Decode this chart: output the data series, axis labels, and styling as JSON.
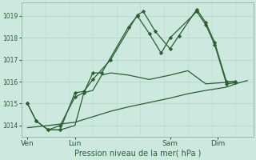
{
  "background_color": "#cce8df",
  "grid_color_h": "#b8d8cc",
  "grid_color_v_major": "#9ab8aa",
  "grid_color_v_minor": "#b8d8cc",
  "line_color": "#2a6030",
  "marker_color": "#2a6030",
  "xlabel": "Pression niveau de la mer( hPa )",
  "x_tick_labels": [
    "Ven",
    "Lun",
    "Sam",
    "Dim"
  ],
  "x_tick_positions": [
    0,
    16,
    48,
    64
  ],
  "series": [
    {
      "x": [
        0,
        3,
        7,
        11,
        16,
        19,
        22,
        28,
        37,
        39,
        43,
        48,
        51,
        57,
        60,
        63,
        67,
        70
      ],
      "y": [
        1015.0,
        1014.2,
        1013.8,
        1013.8,
        1015.5,
        1015.55,
        1016.1,
        1017.0,
        1019.05,
        1019.2,
        1018.3,
        1017.5,
        1018.1,
        1019.3,
        1018.7,
        1017.8,
        1016.0,
        1016.0
      ],
      "marker": "D",
      "ms": 2.2,
      "lw": 0.9,
      "zorder": 5
    },
    {
      "x": [
        0,
        3,
        7,
        11,
        16,
        19,
        22,
        25,
        34,
        37,
        41,
        45,
        48,
        57,
        60,
        63,
        67,
        70
      ],
      "y": [
        1015.0,
        1014.2,
        1013.8,
        1014.0,
        1015.3,
        1015.5,
        1016.4,
        1016.4,
        1018.5,
        1019.0,
        1018.2,
        1017.3,
        1018.0,
        1019.2,
        1018.6,
        1017.7,
        1015.9,
        1015.95
      ],
      "marker": "D",
      "ms": 2.2,
      "lw": 0.9,
      "zorder": 4
    },
    {
      "x": [
        7,
        11,
        16,
        19,
        22,
        25,
        28,
        34,
        41,
        48,
        54,
        60,
        70
      ],
      "y": [
        1013.8,
        1013.8,
        1014.0,
        1015.5,
        1015.6,
        1016.3,
        1016.4,
        1016.3,
        1016.1,
        1016.3,
        1016.5,
        1015.9,
        1016.0
      ],
      "marker": null,
      "ms": 0,
      "lw": 0.9,
      "zorder": 3
    },
    {
      "x": [
        0,
        7,
        16,
        22,
        28,
        34,
        41,
        48,
        54,
        60,
        67,
        70,
        74
      ],
      "y": [
        1013.9,
        1014.0,
        1014.15,
        1014.4,
        1014.65,
        1014.85,
        1015.05,
        1015.25,
        1015.45,
        1015.6,
        1015.75,
        1015.9,
        1016.05
      ],
      "marker": null,
      "ms": 0,
      "lw": 0.9,
      "zorder": 2
    }
  ],
  "xlim": [
    -2,
    76
  ],
  "ylim": [
    1013.5,
    1019.6
  ],
  "yticks": [
    1014,
    1015,
    1016,
    1017,
    1018,
    1019
  ],
  "major_vlines": [
    0,
    16,
    48,
    64
  ],
  "hlines": [
    1014,
    1015,
    1016,
    1017,
    1018,
    1019
  ],
  "minor_vline_step": 8
}
